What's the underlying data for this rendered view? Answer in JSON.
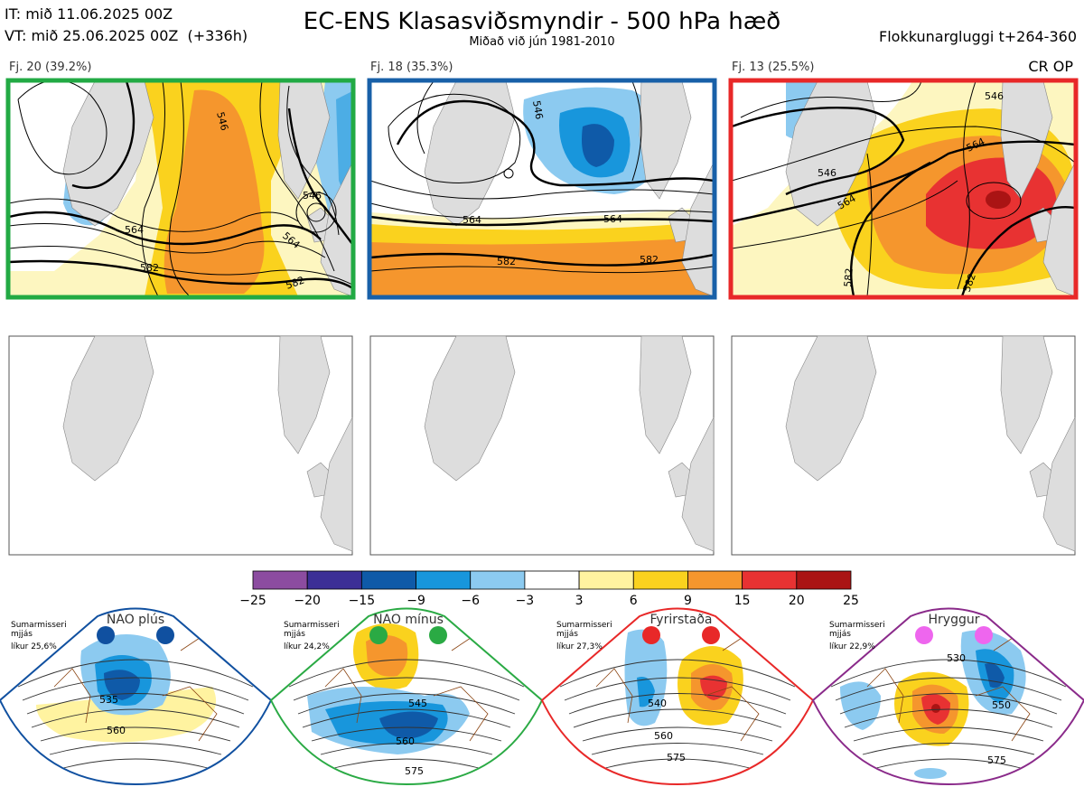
{
  "header": {
    "it_line": "IT: mið 11.06.2025 00Z",
    "vt_line": "VT: mið 25.06.2025 00Z  (+336h)",
    "title": "EC-ENS Klasasviðsmyndir - 500 hPa hæð",
    "subtitle": "Miðað við jún 1981-2010",
    "window": "Flokkunargluggi t+264-360"
  },
  "panels": [
    {
      "label": "Fj. 20 (39.2%)",
      "frame_color": "#22aa44",
      "contours": [
        "546",
        "564",
        "582",
        "564",
        "546",
        "582"
      ]
    },
    {
      "label": "Fj. 18 (35.3%)",
      "frame_color": "#1860a8",
      "contours": [
        "546",
        "564",
        "564",
        "582",
        "582"
      ]
    },
    {
      "label": "Fj. 13 (25.5%)",
      "frame_color": "#e82828",
      "contours": [
        "546",
        "564",
        "546",
        "564",
        "582",
        "582"
      ],
      "tag": "CR OP"
    }
  ],
  "colorbar": {
    "ticks": [
      "−25",
      "−20",
      "−15",
      "−9",
      "−6",
      "−3",
      "3",
      "6",
      "9",
      "15",
      "20",
      "25"
    ],
    "colors": [
      "#8c4ca0",
      "#3c2f96",
      "#0f5aa8",
      "#1896dc",
      "#8ccaf0",
      "#ffffff",
      "#fff3a0",
      "#fad21e",
      "#f5962d",
      "#e83232",
      "#aa1414"
    ]
  },
  "regimes": [
    {
      "name": "NAO plús",
      "season": "Sumarmisseri",
      "method": "mjjás",
      "prob": "líkur 25,6%",
      "dot_color": "#1050a0",
      "frame_color": "#1050a0",
      "contours": [
        "535",
        "560"
      ]
    },
    {
      "name": "NAO mínus",
      "season": "Sumarmisseri",
      "method": "mjjás",
      "prob": "líkur 24,2%",
      "dot_color": "#2aaa44",
      "frame_color": "#2aaa44",
      "contours": [
        "545",
        "560",
        "575"
      ]
    },
    {
      "name": "Fyrirstaða",
      "season": "Sumarmisseri",
      "method": "mjjás",
      "prob": "líkur 27,3%",
      "dot_color": "#e82828",
      "frame_color": "#e82828",
      "contours": [
        "540",
        "560",
        "575"
      ]
    },
    {
      "name": "Hryggur",
      "season": "Sumarmisseri",
      "method": "mjjás",
      "prob": "líkur 22,9%",
      "dot_color": "#ee66ee",
      "frame_color": "#8a2a8a",
      "contours": [
        "530",
        "550",
        "575"
      ]
    }
  ]
}
